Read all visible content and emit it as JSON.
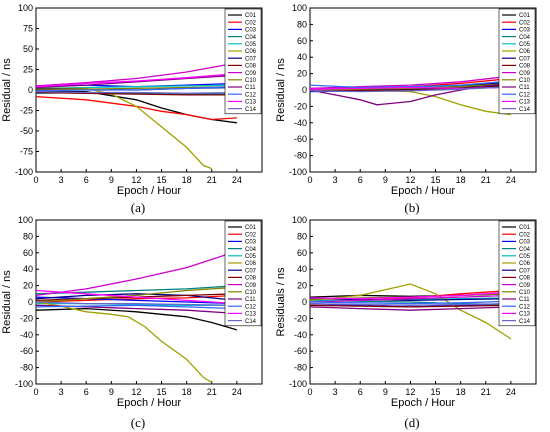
{
  "chart_data": [
    {
      "type": "line",
      "caption": "(a)",
      "xlabel": "Epoch / Hour",
      "ylabel": "Residual / ns",
      "xlim": [
        0,
        27
      ],
      "ylim": [
        -100,
        100
      ],
      "xticks": [
        0,
        3,
        6,
        9,
        12,
        15,
        18,
        21,
        24
      ],
      "yticks": [
        -100,
        -75,
        -50,
        -25,
        0,
        25,
        50,
        75,
        100
      ],
      "legend_position": "top-right",
      "series": [
        {
          "name": "C01",
          "color": "#000000",
          "x": [
            0,
            6,
            12,
            15,
            18,
            21,
            24
          ],
          "y": [
            -2,
            -2,
            -12,
            -22,
            -30,
            -36,
            -40
          ]
        },
        {
          "name": "C02",
          "color": "#ff0000",
          "x": [
            0,
            6,
            12,
            15,
            18,
            21,
            24
          ],
          "y": [
            -8,
            -12,
            -20,
            -26,
            -30,
            -36,
            -34
          ]
        },
        {
          "name": "C03",
          "color": "#0000ff",
          "x": [
            0,
            6,
            12,
            18,
            24
          ],
          "y": [
            4,
            6,
            4,
            6,
            8
          ]
        },
        {
          "name": "C04",
          "color": "#008080",
          "x": [
            0,
            6,
            12,
            18,
            24
          ],
          "y": [
            -4,
            -3,
            -4,
            -5,
            -5
          ]
        },
        {
          "name": "C05",
          "color": "#00c0c0",
          "x": [
            0,
            6,
            12,
            18,
            24
          ],
          "y": [
            2,
            3,
            4,
            5,
            6
          ]
        },
        {
          "name": "C06",
          "color": "#a0a000",
          "x": [
            0,
            6,
            9,
            12,
            15,
            18,
            20,
            21
          ],
          "y": [
            2,
            2,
            -5,
            -20,
            -45,
            -70,
            -92,
            -96
          ]
        },
        {
          "name": "C07",
          "color": "#000080",
          "x": [
            0,
            6,
            12,
            18,
            24
          ],
          "y": [
            1,
            1,
            0,
            2,
            3
          ]
        },
        {
          "name": "C08",
          "color": "#800000",
          "x": [
            0,
            6,
            12,
            18,
            24
          ],
          "y": [
            -3,
            -4,
            -5,
            -6,
            -6
          ]
        },
        {
          "name": "C09",
          "color": "#cc00cc",
          "x": [
            0,
            6,
            12,
            18,
            24
          ],
          "y": [
            5,
            9,
            14,
            22,
            33
          ]
        },
        {
          "name": "C10",
          "color": "#808000",
          "x": [
            0,
            6,
            12,
            18,
            24
          ],
          "y": [
            0,
            1,
            2,
            3,
            4
          ]
        },
        {
          "name": "C11",
          "color": "#800080",
          "x": [
            0,
            6,
            12,
            18,
            24
          ],
          "y": [
            3,
            6,
            10,
            14,
            18
          ]
        },
        {
          "name": "C12",
          "color": "#3366ff",
          "x": [
            0,
            6,
            12,
            18,
            24
          ],
          "y": [
            -1,
            0,
            0,
            2,
            4
          ]
        },
        {
          "name": "C13",
          "color": "#ff00ff",
          "x": [
            0,
            6,
            12,
            18,
            24
          ],
          "y": [
            4,
            8,
            11,
            15,
            20
          ]
        },
        {
          "name": "C14",
          "color": "#6666cc",
          "x": [
            0,
            6,
            12,
            18,
            24
          ],
          "y": [
            -2,
            -3,
            -3,
            -4,
            -3
          ]
        }
      ]
    },
    {
      "type": "line",
      "caption": "(b)",
      "xlabel": "Epoch / Hour",
      "ylabel": "Residual / ns",
      "xlim": [
        0,
        27
      ],
      "ylim": [
        -100,
        100
      ],
      "xticks": [
        0,
        3,
        6,
        9,
        12,
        15,
        18,
        21,
        24
      ],
      "yticks": [
        -100,
        -80,
        -60,
        -40,
        -20,
        0,
        20,
        40,
        60,
        80,
        100
      ],
      "legend_position": "top-right",
      "series": [
        {
          "name": "C01",
          "color": "#000000",
          "x": [
            0,
            6,
            12,
            18,
            24
          ],
          "y": [
            1,
            0,
            1,
            3,
            6
          ]
        },
        {
          "name": "C02",
          "color": "#ff0000",
          "x": [
            0,
            6,
            12,
            18,
            24
          ],
          "y": [
            2,
            3,
            4,
            8,
            14
          ]
        },
        {
          "name": "C03",
          "color": "#0000ff",
          "x": [
            0,
            6,
            12,
            18,
            24
          ],
          "y": [
            -2,
            -1,
            0,
            4,
            8
          ]
        },
        {
          "name": "C04",
          "color": "#008080",
          "x": [
            0,
            6,
            12,
            18,
            24
          ],
          "y": [
            0,
            1,
            2,
            5,
            10
          ]
        },
        {
          "name": "C05",
          "color": "#00c0c0",
          "x": [
            0,
            6,
            12,
            18,
            24
          ],
          "y": [
            1,
            2,
            3,
            6,
            9
          ]
        },
        {
          "name": "C06",
          "color": "#a0a000",
          "x": [
            0,
            6,
            12,
            15,
            18,
            21,
            24
          ],
          "y": [
            0,
            0,
            -2,
            -8,
            -18,
            -26,
            -30
          ]
        },
        {
          "name": "C07",
          "color": "#000080",
          "x": [
            0,
            6,
            12,
            18,
            24
          ],
          "y": [
            -1,
            0,
            1,
            4,
            10
          ]
        },
        {
          "name": "C08",
          "color": "#800000",
          "x": [
            0,
            6,
            12,
            18,
            24
          ],
          "y": [
            0,
            -1,
            0,
            2,
            5
          ]
        },
        {
          "name": "C09",
          "color": "#cc00cc",
          "x": [
            0,
            6,
            12,
            18,
            24
          ],
          "y": [
            2,
            4,
            6,
            10,
            17
          ]
        },
        {
          "name": "C10",
          "color": "#808000",
          "x": [
            0,
            6,
            12,
            18,
            24
          ],
          "y": [
            0,
            1,
            2,
            4,
            8
          ]
        },
        {
          "name": "C11",
          "color": "#800080",
          "x": [
            0,
            3,
            6,
            8,
            12,
            15,
            18,
            21,
            24
          ],
          "y": [
            0,
            -6,
            -12,
            -18,
            -14,
            -6,
            0,
            5,
            8
          ]
        },
        {
          "name": "C12",
          "color": "#3366ff",
          "x": [
            0,
            6,
            12,
            18,
            24
          ],
          "y": [
            6,
            3,
            4,
            6,
            11
          ]
        },
        {
          "name": "C13",
          "color": "#ff00ff",
          "x": [
            0,
            6,
            12,
            18,
            24
          ],
          "y": [
            1,
            2,
            3,
            2,
            3
          ]
        },
        {
          "name": "C14",
          "color": "#6666cc",
          "x": [
            0,
            6,
            12,
            18,
            24
          ],
          "y": [
            -1,
            -2,
            -1,
            1,
            4
          ]
        }
      ]
    },
    {
      "type": "line",
      "caption": "(c)",
      "xlabel": "Epoch / Hour",
      "ylabel": "Residual / ns",
      "xlim": [
        0,
        27
      ],
      "ylim": [
        -100,
        100
      ],
      "xticks": [
        0,
        3,
        6,
        9,
        12,
        15,
        18,
        21,
        24
      ],
      "yticks": [
        -100,
        -80,
        -60,
        -40,
        -20,
        0,
        20,
        40,
        60,
        80,
        100
      ],
      "legend_position": "top-right",
      "series": [
        {
          "name": "C01",
          "color": "#000000",
          "x": [
            0,
            6,
            12,
            18,
            21,
            24
          ],
          "y": [
            -10,
            -8,
            -12,
            -18,
            -25,
            -34
          ]
        },
        {
          "name": "C02",
          "color": "#ff0000",
          "x": [
            0,
            6,
            12,
            18,
            24
          ],
          "y": [
            0,
            2,
            4,
            5,
            8
          ]
        },
        {
          "name": "C03",
          "color": "#0000ff",
          "x": [
            0,
            6,
            12,
            18,
            24
          ],
          "y": [
            6,
            4,
            2,
            0,
            -2
          ]
        },
        {
          "name": "C04",
          "color": "#008080",
          "x": [
            0,
            6,
            12,
            18,
            24
          ],
          "y": [
            10,
            12,
            14,
            16,
            20
          ]
        },
        {
          "name": "C05",
          "color": "#00c0c0",
          "x": [
            0,
            6,
            12,
            18,
            24
          ],
          "y": [
            -2,
            -2,
            -3,
            -4,
            -4
          ]
        },
        {
          "name": "C06",
          "color": "#a0a000",
          "x": [
            0,
            3,
            6,
            9,
            11,
            13,
            15,
            18,
            20,
            21
          ],
          "y": [
            0,
            -5,
            -12,
            -15,
            -18,
            -30,
            -48,
            -70,
            -92,
            -98
          ]
        },
        {
          "name": "C07",
          "color": "#000080",
          "x": [
            0,
            6,
            12,
            18,
            24
          ],
          "y": [
            4,
            8,
            10,
            8,
            2
          ]
        },
        {
          "name": "C08",
          "color": "#800000",
          "x": [
            0,
            6,
            12,
            18,
            24
          ],
          "y": [
            2,
            4,
            6,
            8,
            10
          ]
        },
        {
          "name": "C09",
          "color": "#cc00cc",
          "x": [
            0,
            6,
            12,
            18,
            24
          ],
          "y": [
            8,
            16,
            28,
            42,
            62
          ]
        },
        {
          "name": "C10",
          "color": "#808000",
          "x": [
            0,
            6,
            12,
            18,
            24
          ],
          "y": [
            0,
            4,
            8,
            14,
            18
          ]
        },
        {
          "name": "C11",
          "color": "#800080",
          "x": [
            0,
            6,
            12,
            18,
            24
          ],
          "y": [
            -4,
            -6,
            -8,
            -10,
            -14
          ]
        },
        {
          "name": "C12",
          "color": "#3366ff",
          "x": [
            0,
            6,
            12,
            18,
            24
          ],
          "y": [
            -6,
            -5,
            -4,
            -6,
            -8
          ]
        },
        {
          "name": "C13",
          "color": "#ff00ff",
          "x": [
            0,
            6,
            12,
            18,
            24
          ],
          "y": [
            14,
            10,
            6,
            2,
            -2
          ]
        },
        {
          "name": "C14",
          "color": "#6666cc",
          "x": [
            0,
            6,
            12,
            18,
            24
          ],
          "y": [
            0,
            -2,
            -2,
            -3,
            -4
          ]
        }
      ]
    },
    {
      "type": "line",
      "caption": "(d)",
      "xlabel": "Epoch / Hour",
      "ylabel": "Residuals / ns",
      "xlim": [
        0,
        27
      ],
      "ylim": [
        -100,
        100
      ],
      "xticks": [
        0,
        3,
        6,
        9,
        12,
        15,
        18,
        21,
        24
      ],
      "yticks": [
        -100,
        -80,
        -60,
        -40,
        -20,
        0,
        20,
        40,
        60,
        80,
        100
      ],
      "legend_position": "top-right",
      "series": [
        {
          "name": "C01",
          "color": "#000000",
          "x": [
            0,
            6,
            12,
            18,
            24
          ],
          "y": [
            6,
            8,
            7,
            8,
            10
          ]
        },
        {
          "name": "C02",
          "color": "#ff0000",
          "x": [
            0,
            6,
            12,
            18,
            24
          ],
          "y": [
            0,
            2,
            5,
            10,
            14
          ]
        },
        {
          "name": "C03",
          "color": "#0000ff",
          "x": [
            0,
            6,
            12,
            18,
            24
          ],
          "y": [
            -2,
            -4,
            -6,
            -4,
            -2
          ]
        },
        {
          "name": "C04",
          "color": "#008080",
          "x": [
            0,
            6,
            12,
            18,
            24
          ],
          "y": [
            2,
            1,
            0,
            -2,
            -3
          ]
        },
        {
          "name": "C05",
          "color": "#00c0c0",
          "x": [
            0,
            6,
            12,
            18,
            24
          ],
          "y": [
            1,
            2,
            3,
            4,
            5
          ]
        },
        {
          "name": "C06",
          "color": "#a0a000",
          "x": [
            0,
            3,
            6,
            9,
            12,
            15,
            18,
            21,
            24
          ],
          "y": [
            2,
            5,
            8,
            15,
            22,
            10,
            -10,
            -25,
            -45
          ]
        },
        {
          "name": "C07",
          "color": "#000080",
          "x": [
            0,
            6,
            12,
            18,
            24
          ],
          "y": [
            4,
            3,
            2,
            3,
            4
          ]
        },
        {
          "name": "C08",
          "color": "#800000",
          "x": [
            0,
            6,
            12,
            18,
            24
          ],
          "y": [
            -4,
            -5,
            -6,
            -5,
            -4
          ]
        },
        {
          "name": "C09",
          "color": "#cc00cc",
          "x": [
            0,
            6,
            12,
            18,
            24
          ],
          "y": [
            0,
            2,
            4,
            6,
            8
          ]
        },
        {
          "name": "C10",
          "color": "#808000",
          "x": [
            0,
            6,
            12,
            18,
            24
          ],
          "y": [
            3,
            5,
            6,
            8,
            10
          ]
        },
        {
          "name": "C11",
          "color": "#800080",
          "x": [
            0,
            6,
            12,
            18,
            24
          ],
          "y": [
            -6,
            -8,
            -10,
            -8,
            -6
          ]
        },
        {
          "name": "C12",
          "color": "#3366ff",
          "x": [
            0,
            6,
            12,
            18,
            24
          ],
          "y": [
            0,
            -1,
            -2,
            -1,
            1
          ]
        },
        {
          "name": "C13",
          "color": "#ff00ff",
          "x": [
            0,
            6,
            12,
            18,
            24
          ],
          "y": [
            5,
            4,
            6,
            8,
            12
          ]
        },
        {
          "name": "C14",
          "color": "#6666cc",
          "x": [
            0,
            6,
            12,
            18,
            24
          ],
          "y": [
            -2,
            -3,
            -4,
            -3,
            -2
          ]
        }
      ]
    }
  ]
}
